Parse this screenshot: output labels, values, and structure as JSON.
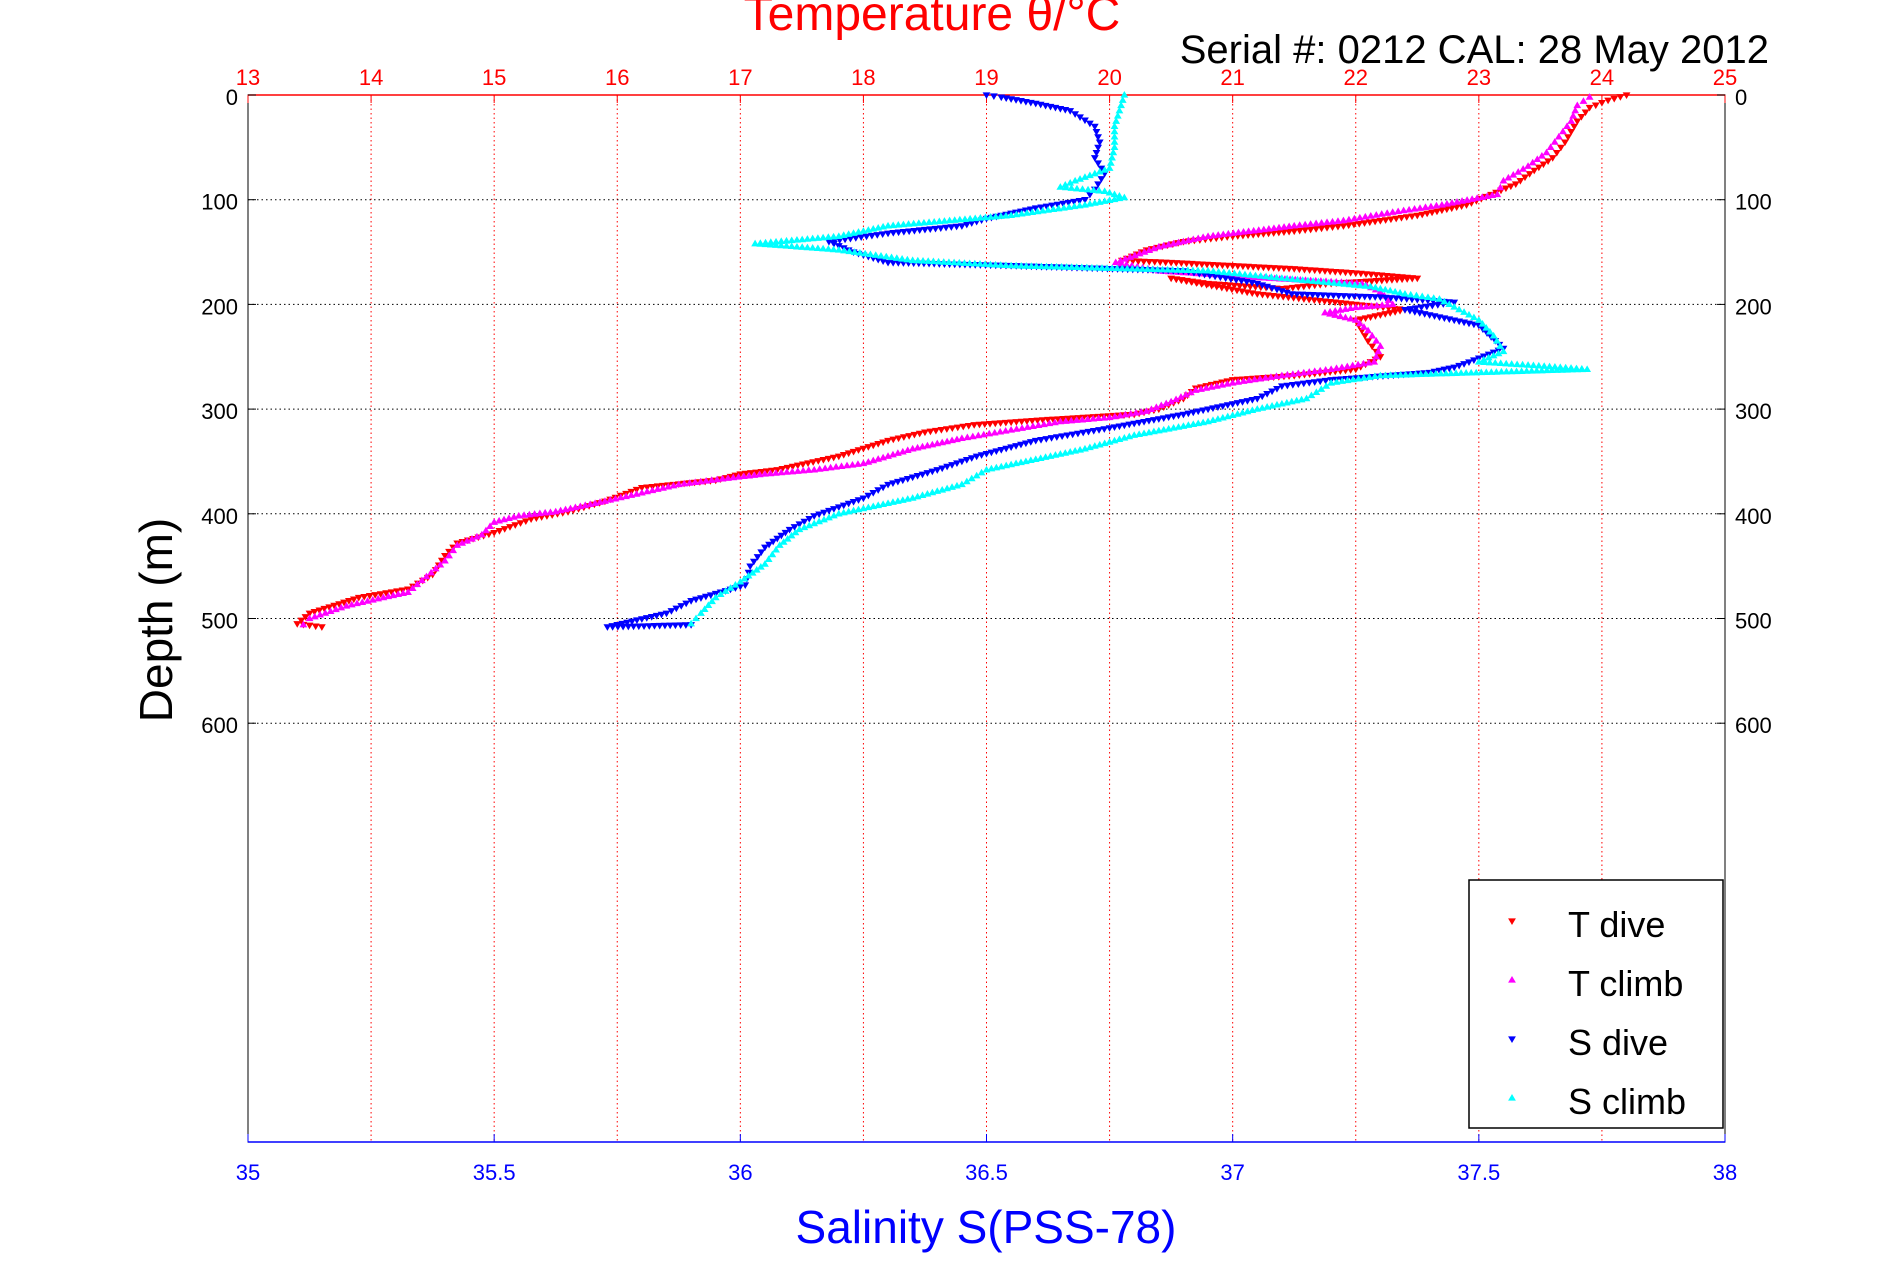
{
  "chart_data": {
    "type": "scatter",
    "title": "Temperature θ/°C",
    "subtitle": "Serial #: 0212  CAL: 28 May 2012",
    "xlabel": "Salinity S(PSS-78)",
    "ylabel": "Depth (m)",
    "x_top_ticks": [
      "13",
      "14",
      "15",
      "16",
      "17",
      "18",
      "19",
      "20",
      "21",
      "22",
      "23",
      "24",
      "25"
    ],
    "x_bottom_ticks": [
      "35",
      "35.5",
      "36",
      "36.5",
      "37",
      "37.5",
      "38"
    ],
    "y_ticks_left": [
      "0",
      "100",
      "200",
      "300",
      "400",
      "500",
      "600"
    ],
    "y_ticks_right": [
      "0",
      "100",
      "200",
      "300",
      "400",
      "500",
      "600"
    ],
    "top_axis": {
      "label": "Temperature θ/°C",
      "range": [
        13,
        25
      ],
      "color": "#ff0000"
    },
    "bottom_axis": {
      "label": "Salinity S(PSS-78)",
      "range": [
        35,
        38
      ],
      "color": "#0000ff"
    },
    "y_axis": {
      "label": "Depth (m)",
      "range": [
        0,
        1000
      ],
      "reversed": true
    },
    "grid": true,
    "legend_position": "bottom-right",
    "series": [
      {
        "name": "T dive",
        "axis": "top",
        "color": "#ff0000",
        "marker": "triangle-down",
        "points": [
          [
            24.2,
            0
          ],
          [
            24.05,
            5
          ],
          [
            23.9,
            12
          ],
          [
            23.8,
            25
          ],
          [
            23.7,
            45
          ],
          [
            23.6,
            60
          ],
          [
            23.45,
            72
          ],
          [
            23.3,
            85
          ],
          [
            23.1,
            95
          ],
          [
            22.9,
            105
          ],
          [
            22.7,
            110
          ],
          [
            22.5,
            115
          ],
          [
            22.2,
            120
          ],
          [
            21.9,
            125
          ],
          [
            21.5,
            130
          ],
          [
            21.0,
            135
          ],
          [
            20.6,
            140
          ],
          [
            20.3,
            148
          ],
          [
            20.1,
            158
          ],
          [
            20.5,
            160
          ],
          [
            21.0,
            163
          ],
          [
            21.5,
            166
          ],
          [
            22.0,
            170
          ],
          [
            22.5,
            175
          ],
          [
            21.8,
            180
          ],
          [
            21.4,
            185
          ],
          [
            20.8,
            180
          ],
          [
            20.5,
            175
          ],
          [
            21.2,
            190
          ],
          [
            22.0,
            200
          ],
          [
            22.4,
            205
          ],
          [
            22.0,
            215
          ],
          [
            22.1,
            235
          ],
          [
            22.2,
            250
          ],
          [
            22.0,
            262
          ],
          [
            21.5,
            268
          ],
          [
            21.0,
            272
          ],
          [
            20.7,
            280
          ],
          [
            20.6,
            290
          ],
          [
            20.4,
            300
          ],
          [
            20.2,
            305
          ],
          [
            19.5,
            310
          ],
          [
            18.9,
            315
          ],
          [
            18.5,
            322
          ],
          [
            18.2,
            330
          ],
          [
            17.8,
            345
          ],
          [
            17.3,
            358
          ],
          [
            17.0,
            362
          ],
          [
            16.8,
            368
          ],
          [
            16.2,
            375
          ],
          [
            15.9,
            388
          ],
          [
            15.6,
            398
          ],
          [
            15.3,
            405
          ],
          [
            15.0,
            418
          ],
          [
            14.7,
            428
          ],
          [
            14.6,
            440
          ],
          [
            14.5,
            458
          ],
          [
            14.3,
            472
          ],
          [
            13.9,
            480
          ],
          [
            13.5,
            495
          ],
          [
            13.4,
            505
          ],
          [
            13.6,
            508
          ]
        ]
      },
      {
        "name": "T climb",
        "axis": "top",
        "color": "#ff00ff",
        "marker": "triangle-up",
        "points": [
          [
            23.9,
            2
          ],
          [
            23.8,
            10
          ],
          [
            23.75,
            25
          ],
          [
            23.65,
            40
          ],
          [
            23.55,
            55
          ],
          [
            23.4,
            68
          ],
          [
            23.2,
            82
          ],
          [
            23.15,
            95
          ],
          [
            22.7,
            105
          ],
          [
            22.3,
            112
          ],
          [
            21.9,
            120
          ],
          [
            21.5,
            125
          ],
          [
            20.8,
            135
          ],
          [
            20.4,
            145
          ],
          [
            20.05,
            160
          ],
          [
            20.4,
            168
          ],
          [
            21.3,
            175
          ],
          [
            22.05,
            180
          ],
          [
            22.2,
            188
          ],
          [
            22.3,
            200
          ],
          [
            22.0,
            203
          ],
          [
            21.75,
            208
          ],
          [
            22.0,
            215
          ],
          [
            22.1,
            225
          ],
          [
            22.2,
            240
          ],
          [
            22.15,
            255
          ],
          [
            21.8,
            262
          ],
          [
            21.4,
            268
          ],
          [
            21.0,
            275
          ],
          [
            20.7,
            282
          ],
          [
            20.5,
            293
          ],
          [
            20.3,
            302
          ],
          [
            20.0,
            308
          ],
          [
            19.6,
            312
          ],
          [
            19.2,
            320
          ],
          [
            18.8,
            328
          ],
          [
            18.4,
            338
          ],
          [
            18.0,
            352
          ],
          [
            17.6,
            358
          ],
          [
            17.2,
            362
          ],
          [
            16.9,
            366
          ],
          [
            16.5,
            372
          ],
          [
            16.2,
            380
          ],
          [
            15.9,
            388
          ],
          [
            15.5,
            398
          ],
          [
            15.2,
            402
          ],
          [
            15.0,
            408
          ],
          [
            14.9,
            420
          ],
          [
            14.7,
            430
          ],
          [
            14.6,
            445
          ],
          [
            14.45,
            460
          ],
          [
            14.3,
            475
          ],
          [
            14.1,
            480
          ],
          [
            13.8,
            488
          ],
          [
            13.5,
            500
          ],
          [
            13.45,
            506
          ]
        ]
      },
      {
        "name": "S dive",
        "axis": "bottom",
        "color": "#0000ff",
        "marker": "triangle-down",
        "points": [
          [
            36.5,
            0
          ],
          [
            36.53,
            2
          ],
          [
            36.6,
            8
          ],
          [
            36.67,
            15
          ],
          [
            36.72,
            30
          ],
          [
            36.73,
            45
          ],
          [
            36.72,
            60
          ],
          [
            36.74,
            75
          ],
          [
            36.72,
            90
          ],
          [
            36.7,
            100
          ],
          [
            36.6,
            108
          ],
          [
            36.5,
            118
          ],
          [
            36.45,
            125
          ],
          [
            36.3,
            132
          ],
          [
            36.18,
            140
          ],
          [
            36.23,
            150
          ],
          [
            36.3,
            160
          ],
          [
            36.55,
            163
          ],
          [
            36.9,
            168
          ],
          [
            37.05,
            180
          ],
          [
            37.12,
            190
          ],
          [
            37.3,
            193
          ],
          [
            37.45,
            198
          ],
          [
            37.35,
            205
          ],
          [
            37.5,
            220
          ],
          [
            37.55,
            242
          ],
          [
            37.48,
            255
          ],
          [
            37.45,
            260
          ],
          [
            37.4,
            265
          ],
          [
            37.2,
            272
          ],
          [
            37.1,
            278
          ],
          [
            37.05,
            290
          ],
          [
            36.9,
            305
          ],
          [
            36.75,
            318
          ],
          [
            36.6,
            330
          ],
          [
            36.48,
            345
          ],
          [
            36.4,
            358
          ],
          [
            36.3,
            372
          ],
          [
            36.25,
            385
          ],
          [
            36.15,
            402
          ],
          [
            36.1,
            415
          ],
          [
            36.05,
            432
          ],
          [
            36.02,
            450
          ],
          [
            36.01,
            468
          ],
          [
            35.9,
            483
          ],
          [
            35.85,
            495
          ],
          [
            35.73,
            508
          ],
          [
            35.9,
            506
          ]
        ]
      },
      {
        "name": "S climb",
        "axis": "bottom",
        "color": "#00ffff",
        "marker": "triangle-up",
        "points": [
          [
            36.78,
            0
          ],
          [
            36.77,
            15
          ],
          [
            36.76,
            30
          ],
          [
            36.76,
            50
          ],
          [
            36.75,
            70
          ],
          [
            36.68,
            82
          ],
          [
            36.65,
            88
          ],
          [
            36.74,
            92
          ],
          [
            36.78,
            98
          ],
          [
            36.7,
            105
          ],
          [
            36.55,
            115
          ],
          [
            36.3,
            125
          ],
          [
            36.2,
            135
          ],
          [
            36.03,
            142
          ],
          [
            36.2,
            148
          ],
          [
            36.35,
            158
          ],
          [
            36.55,
            163
          ],
          [
            36.95,
            168
          ],
          [
            37.1,
            175
          ],
          [
            37.28,
            183
          ],
          [
            37.35,
            190
          ],
          [
            37.42,
            195
          ],
          [
            37.5,
            215
          ],
          [
            37.53,
            230
          ],
          [
            37.55,
            245
          ],
          [
            37.5,
            255
          ],
          [
            37.6,
            258
          ],
          [
            37.72,
            262
          ],
          [
            37.3,
            268
          ],
          [
            37.2,
            275
          ],
          [
            37.15,
            290
          ],
          [
            37.05,
            300
          ],
          [
            36.95,
            312
          ],
          [
            36.8,
            325
          ],
          [
            36.7,
            338
          ],
          [
            36.6,
            348
          ],
          [
            36.5,
            358
          ],
          [
            36.45,
            372
          ],
          [
            36.35,
            385
          ],
          [
            36.2,
            400
          ],
          [
            36.12,
            415
          ],
          [
            36.08,
            430
          ],
          [
            36.05,
            448
          ],
          [
            36.0,
            465
          ],
          [
            35.95,
            480
          ],
          [
            35.92,
            495
          ],
          [
            35.9,
            505
          ]
        ]
      }
    ]
  }
}
